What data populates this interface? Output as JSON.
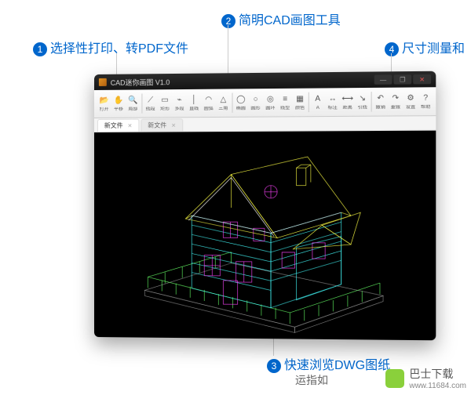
{
  "callouts": {
    "c1": {
      "num": "1",
      "text": "选择性打印、转PDF文件"
    },
    "c2": {
      "num": "2",
      "text": "简明CAD画图工具"
    },
    "c3": {
      "num": "3",
      "text": "快速浏览DWG图纸"
    },
    "c3_sub": "运指如",
    "c4": {
      "num": "4",
      "text": "尺寸测量和"
    }
  },
  "window": {
    "title": "CAD迷你画图  V1.0",
    "winbtns": {
      "min": "—",
      "max": "❐",
      "close": "✕"
    }
  },
  "toolbar": {
    "groups": [
      [
        "打开",
        "平移",
        "局部"
      ],
      [
        "__sep__"
      ],
      [
        "线段",
        "矩形",
        "多段",
        "直线"
      ],
      [
        "圆弧",
        "三角"
      ],
      [
        "__sep__"
      ],
      [
        "椭圆",
        "圆形",
        "圆环"
      ],
      [
        "线型",
        "颜色"
      ],
      [
        "__sep__"
      ],
      [
        "A",
        "标注",
        "距离",
        "引线"
      ],
      [
        "__sep__"
      ],
      [
        "撤销",
        "重做"
      ],
      [
        "设置",
        "帮助"
      ]
    ],
    "icon_glyphs": {
      "打开": "📂",
      "平移": "✋",
      "局部": "🔍",
      "线段": "⟋",
      "矩形": "▭",
      "多段": "⌁",
      "直线": "│",
      "圆弧": "◠",
      "三角": "△",
      "椭圆": "◯",
      "圆形": "○",
      "圆环": "◎",
      "线型": "≡",
      "颜色": "▦",
      "A": "A",
      "标注": "↔",
      "距离": "⟷",
      "引线": "↘",
      "撤销": "↶",
      "重做": "↷",
      "设置": "⚙",
      "帮助": "?"
    }
  },
  "tabs": [
    {
      "label": "新文件",
      "active": true
    },
    {
      "label": "新文件",
      "active": false
    }
  ],
  "canvas": {
    "background": "#000000",
    "wire_colors": {
      "roof": "#ffff44",
      "wall": "#44ffff",
      "window": "#ff44ff",
      "rail": "#66ff66",
      "base": "#888888",
      "accent": "#ffffff"
    },
    "stroke_width": 0.6
  },
  "watermark": {
    "icon_color": "#8ad03b",
    "text": "巴士下载",
    "url": "www.11684.com"
  },
  "colors": {
    "callout_text": "#0066cc",
    "callout_line": "#cccccc",
    "title_bg": "#1a1a1a",
    "toolbar_top": "#fdfdfd",
    "toolbar_bottom": "#ececec"
  }
}
